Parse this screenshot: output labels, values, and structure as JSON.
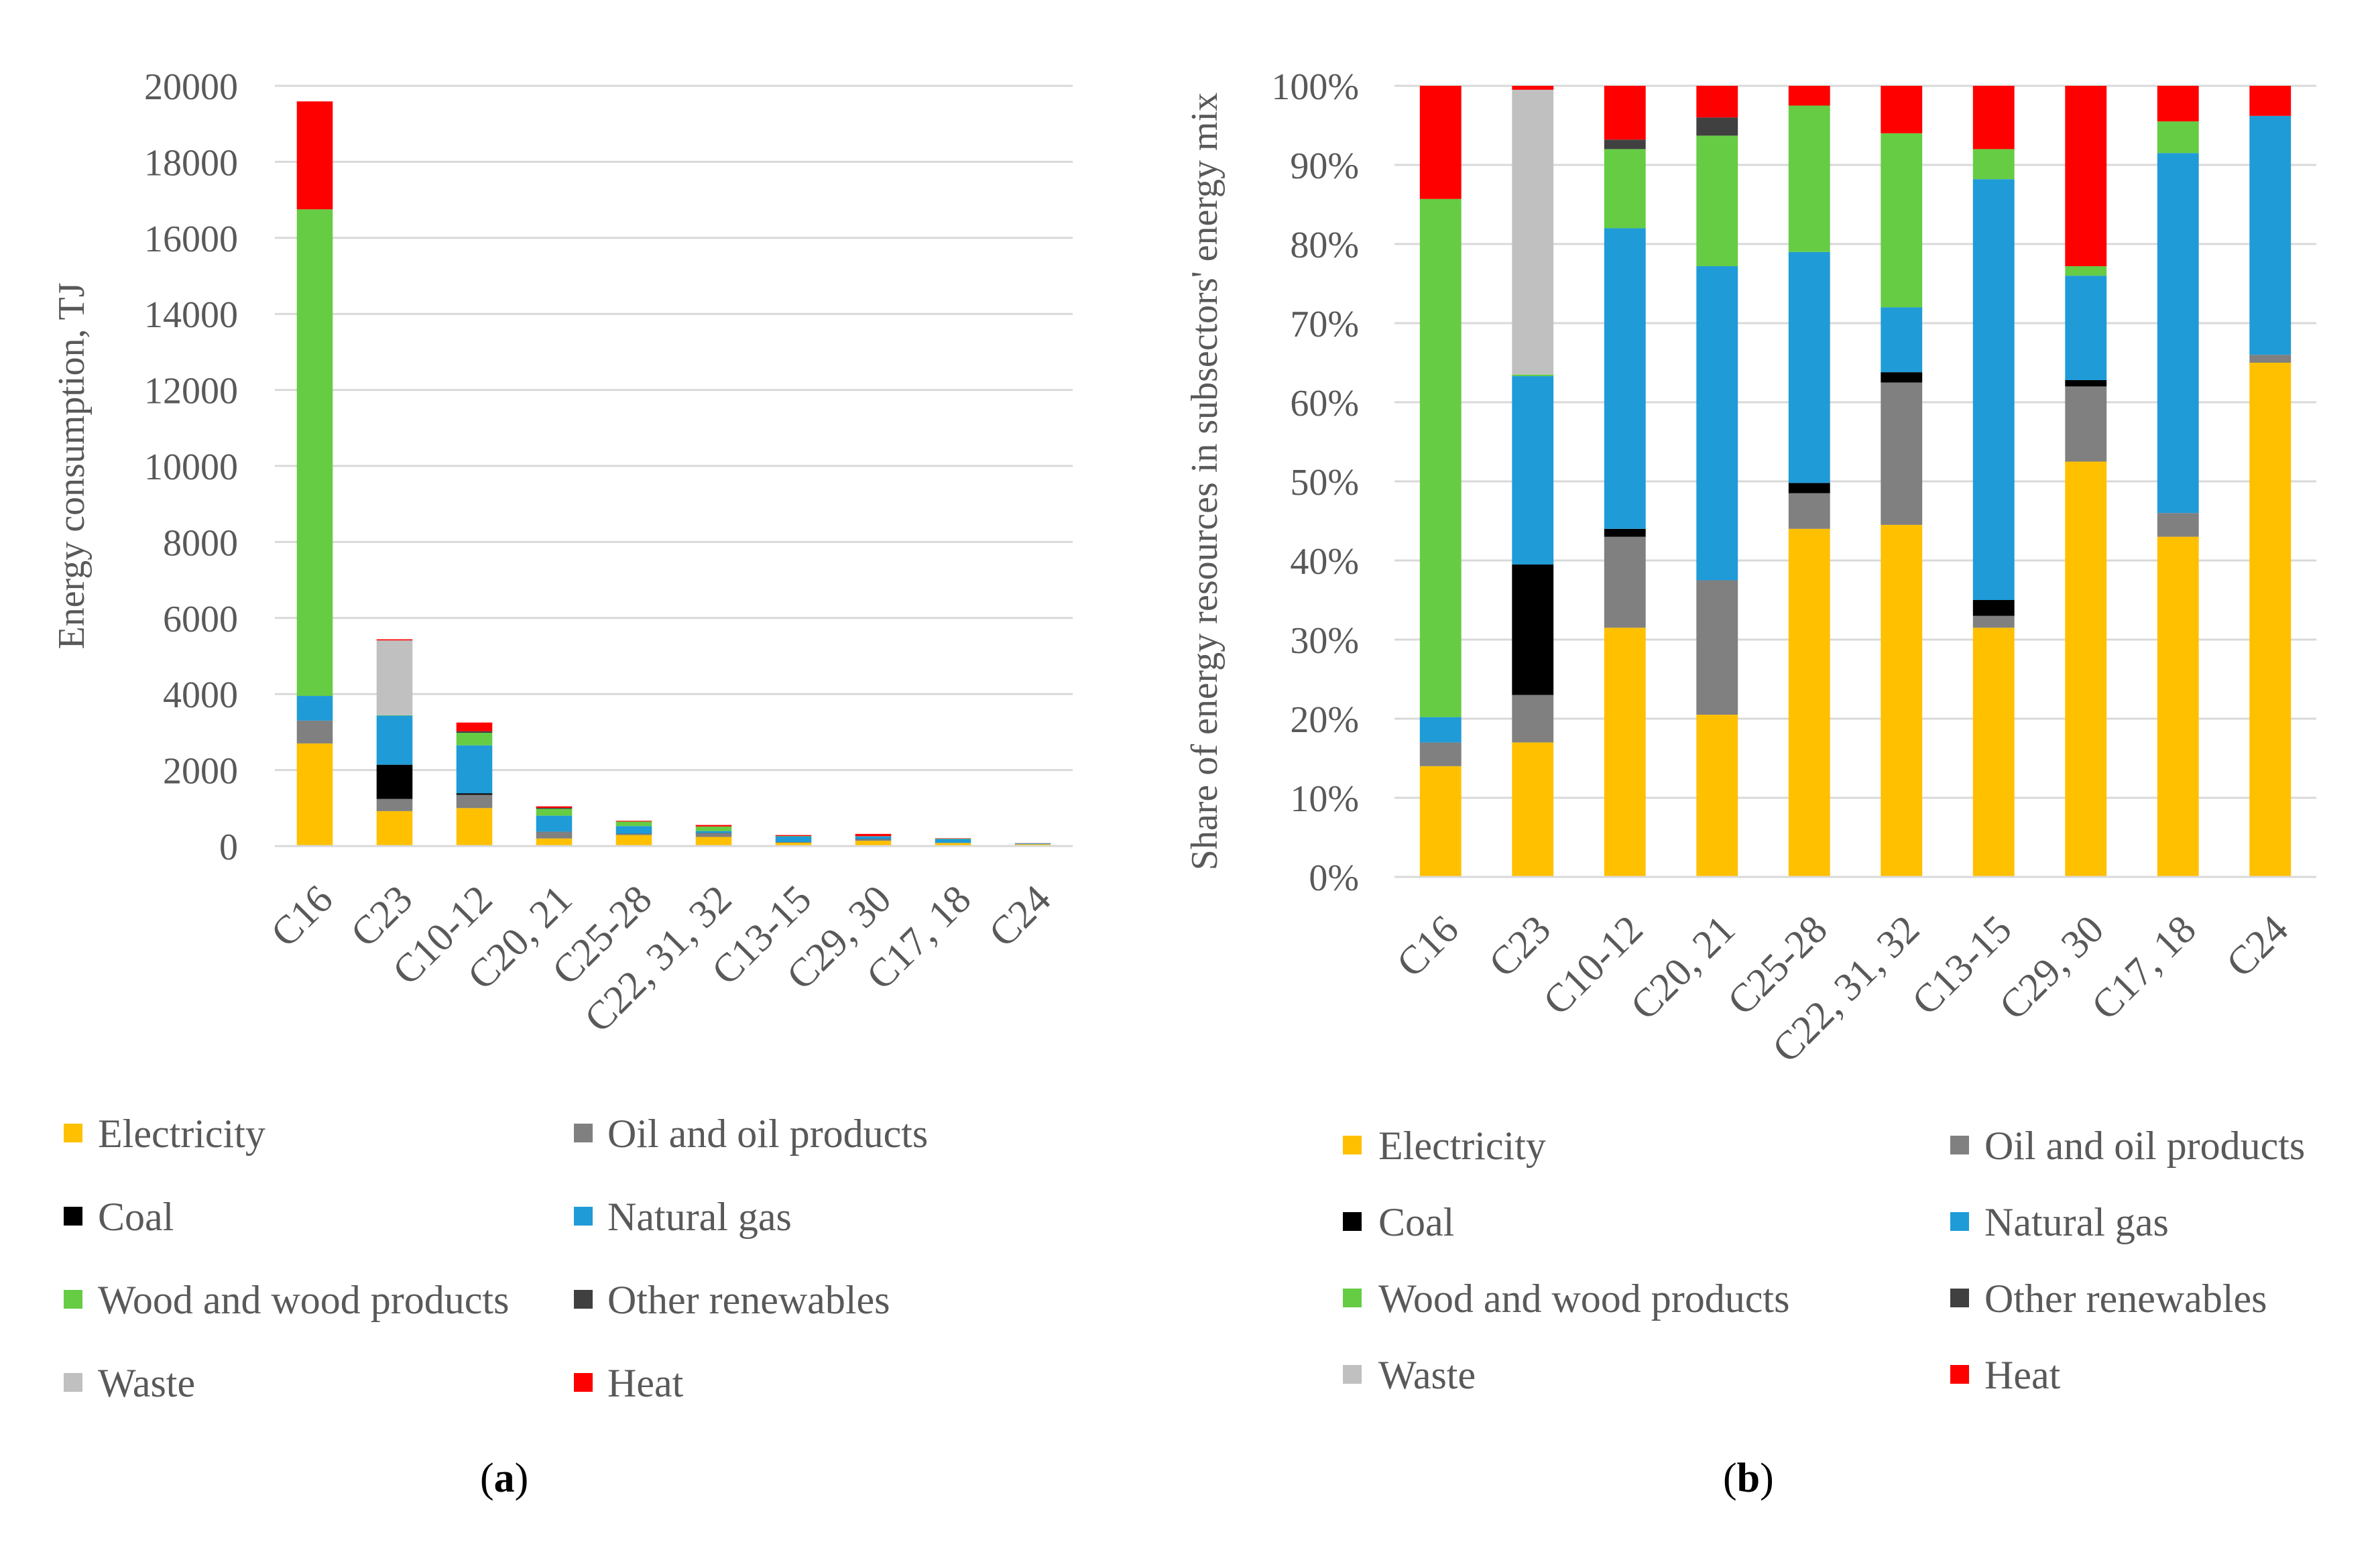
{
  "colors": {
    "Electricity": "#FFC000",
    "Oil and oil products": "#808080",
    "Coal": "#000000",
    "Natural gas": "#1F9BD7",
    "Wood and wood products": "#66CC44",
    "Other renewables": "#404040",
    "Waste": "#C0C0C0",
    "Heat": "#FF0000",
    "grid": "#D9D9D9",
    "axis_text": "#595959"
  },
  "chart_data": [
    {
      "type": "bar",
      "stacked": true,
      "panel": "a",
      "caption_open": "(",
      "caption_letter": "a",
      "caption_close": ")",
      "ylabel": "Energy consumption, TJ",
      "ylim": [
        0,
        20000
      ],
      "yticks": [
        "0",
        "2000",
        "4000",
        "6000",
        "8000",
        "10000",
        "12000",
        "14000",
        "16000",
        "18000",
        "20000"
      ],
      "categories": [
        "C16",
        "C23",
        "C10-12",
        "C20, 21",
        "C25-28",
        "C22, 31, 32",
        "C13-15",
        "C29, 30",
        "C17, 18",
        "C24"
      ],
      "series": [
        {
          "name": "Electricity",
          "values": [
            2700,
            920,
            1000,
            200,
            290,
            240,
            90,
            140,
            80,
            50
          ]
        },
        {
          "name": "Oil and oil products",
          "values": [
            600,
            320,
            350,
            180,
            30,
            100,
            10,
            40,
            5,
            0
          ]
        },
        {
          "name": "Coal",
          "values": [
            0,
            900,
            40,
            0,
            5,
            5,
            5,
            5,
            0,
            0
          ]
        },
        {
          "name": "Natural gas",
          "values": [
            650,
            1290,
            1260,
            420,
            200,
            50,
            150,
            70,
            100,
            20
          ]
        },
        {
          "name": "Wood and wood products",
          "values": [
            12800,
            10,
            330,
            180,
            120,
            120,
            10,
            5,
            10,
            0
          ]
        },
        {
          "name": "Other renewables",
          "values": [
            0,
            0,
            40,
            25,
            0,
            0,
            0,
            0,
            0,
            0
          ]
        },
        {
          "name": "Waste",
          "values": [
            0,
            1970,
            0,
            0,
            0,
            0,
            0,
            0,
            0,
            0
          ]
        },
        {
          "name": "Heat",
          "values": [
            2840,
            30,
            230,
            40,
            20,
            40,
            25,
            60,
            10,
            5
          ]
        }
      ],
      "legend_position": "bottom"
    },
    {
      "type": "bar",
      "stacked": true,
      "panel": "b",
      "caption_open": "(",
      "caption_letter": "b",
      "caption_close": ")",
      "ylabel": "Share of energy resources in subsectors' energy mix",
      "ylim": [
        0,
        100
      ],
      "yticks": [
        "0%",
        "10%",
        "20%",
        "30%",
        "40%",
        "50%",
        "60%",
        "70%",
        "80%",
        "90%",
        "100%"
      ],
      "categories": [
        "C16",
        "C23",
        "C10-12",
        "C20, 21",
        "C25-28",
        "C22, 31, 32",
        "C13-15",
        "C29, 30",
        "C17, 18",
        "C24"
      ],
      "series": [
        {
          "name": "Electricity",
          "values": [
            14,
            17,
            31.5,
            20.5,
            44,
            44.5,
            31.5,
            52.5,
            43,
            65
          ]
        },
        {
          "name": "Oil and oil products",
          "values": [
            3,
            6,
            11.5,
            17,
            4.5,
            18,
            1.5,
            9.5,
            3,
            1
          ]
        },
        {
          "name": "Coal",
          "values": [
            0,
            16.5,
            1,
            0,
            1.3,
            1.3,
            2,
            0.8,
            0,
            0
          ]
        },
        {
          "name": "Natural gas",
          "values": [
            3.2,
            23.8,
            38,
            39.7,
            29.2,
            8.2,
            53.2,
            13.2,
            45.5,
            30.2
          ]
        },
        {
          "name": "Wood and wood products",
          "values": [
            65.5,
            0.2,
            10,
            16.5,
            18.5,
            22,
            3.8,
            1.2,
            4,
            0
          ]
        },
        {
          "name": "Other renewables",
          "values": [
            0,
            0,
            1.2,
            2.3,
            0,
            0,
            0,
            0,
            0,
            0
          ]
        },
        {
          "name": "Waste",
          "values": [
            0,
            36,
            0,
            0,
            0,
            0,
            0,
            0,
            0,
            0
          ]
        },
        {
          "name": "Heat",
          "values": [
            14.3,
            0.5,
            6.8,
            4,
            2.5,
            6,
            8,
            22.8,
            4.5,
            3.8
          ]
        }
      ],
      "legend_position": "bottom"
    }
  ]
}
